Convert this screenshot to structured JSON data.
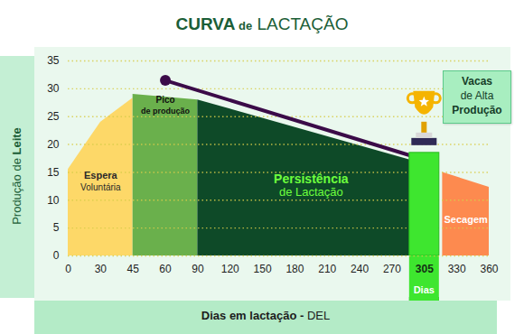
{
  "chart_data": {
    "type": "area",
    "title": "CURVA de LACTAÇÃO",
    "x_label": "Dias em lactação - DEL",
    "y_label": "Produção de Leite",
    "xlim": [
      0,
      360
    ],
    "xticks": [
      0,
      30,
      45,
      60,
      90,
      120,
      150,
      180,
      210,
      240,
      270,
      305,
      330,
      360
    ],
    "ylim": [
      0,
      35
    ],
    "yticks": [
      0,
      5,
      10,
      15,
      20,
      25,
      30,
      35
    ],
    "grid": true,
    "series": [
      {
        "name": "Espera Voluntária",
        "color": "#fdd868",
        "x": [
          0,
          30,
          45
        ],
        "values": [
          15.5,
          24,
          28.3
        ]
      },
      {
        "name": "Pico de produção",
        "color": "#6ab04c",
        "x": [
          45,
          90
        ],
        "values": [
          29,
          28
        ]
      },
      {
        "name": "Persistência de Lactação",
        "color": "#0e4a28",
        "x": [
          90,
          305
        ],
        "values": [
          28,
          16.5
        ]
      },
      {
        "name": "Secagem",
        "color": "#fd8a4f",
        "x": [
          319,
          360
        ],
        "values": [
          15,
          12.3
        ]
      },
      {
        "type": "bar",
        "color": "#3ee62f",
        "x": [
          305
        ],
        "values": [
          18.5
        ]
      },
      {
        "type": "line",
        "color": "#3b0b48",
        "marker": "circle",
        "x": [
          60,
          300
        ],
        "values": [
          31.5,
          17.5
        ]
      }
    ],
    "annotations": [
      {
        "text": "Dias",
        "x": 305
      },
      {
        "text": "Vacas de Alta Produção"
      }
    ]
  }
}
